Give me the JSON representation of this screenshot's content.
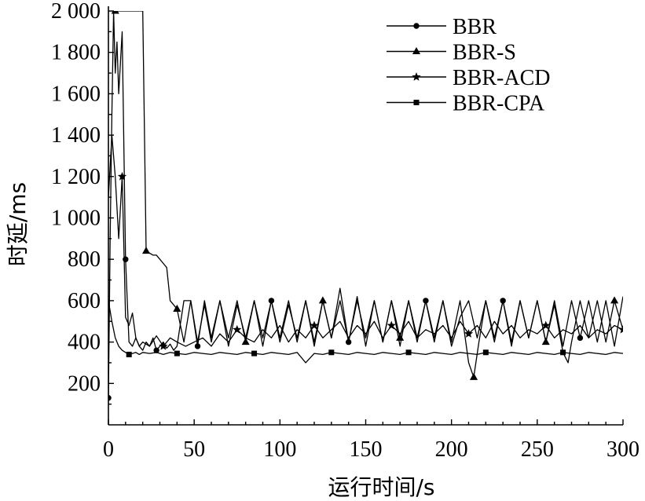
{
  "chart_data": {
    "type": "line",
    "xlabel": "运行时间/s",
    "ylabel": "时延/ms",
    "xlim": [
      0,
      300
    ],
    "ylim": [
      0,
      2000
    ],
    "x_ticks": [
      0,
      50,
      100,
      150,
      200,
      250,
      300
    ],
    "x_tick_labels": [
      "0",
      "50",
      "100",
      "150",
      "200",
      "250",
      "300"
    ],
    "y_ticks": [
      200,
      400,
      600,
      800,
      1000,
      1200,
      1400,
      1600,
      1800,
      2000
    ],
    "y_tick_labels": [
      "200",
      "400",
      "600",
      "800",
      "1 000",
      "1 200",
      "1 400",
      "1 600",
      "1 800",
      "2 000"
    ],
    "grid": false,
    "legend_position": "top-right",
    "series": [
      {
        "name": "BBR",
        "marker": "circle",
        "x": [
          0,
          1,
          2,
          3,
          4,
          5,
          6,
          7,
          8,
          10,
          12,
          14,
          16,
          18,
          20,
          22,
          24,
          26,
          28,
          30,
          32,
          34,
          36,
          38,
          40,
          44,
          48,
          52,
          56,
          60,
          65,
          70,
          75,
          80,
          85,
          90,
          95,
          100,
          105,
          110,
          115,
          120,
          125,
          130,
          135,
          140,
          145,
          150,
          155,
          160,
          165,
          170,
          175,
          180,
          185,
          190,
          195,
          200,
          205,
          210,
          215,
          220,
          225,
          230,
          235,
          240,
          245,
          250,
          255,
          260,
          265,
          270,
          275,
          280,
          285,
          290,
          295,
          300
        ],
        "y": [
          130,
          900,
          1500,
          2000,
          1700,
          1850,
          1600,
          1750,
          1900,
          800,
          400,
          380,
          420,
          380,
          360,
          400,
          380,
          420,
          360,
          380,
          400,
          370,
          390,
          360,
          380,
          600,
          600,
          380,
          600,
          420,
          600,
          380,
          580,
          420,
          600,
          380,
          600,
          420,
          600,
          400,
          600,
          380,
          600,
          420,
          600,
          400,
          620,
          380,
          600,
          400,
          600,
          380,
          600,
          420,
          600,
          400,
          600,
          380,
          520,
          600,
          420,
          600,
          400,
          600,
          380,
          600,
          420,
          600,
          400,
          600,
          380,
          600,
          420,
          600,
          400,
          600,
          380,
          620
        ]
      },
      {
        "name": "BBR-S",
        "marker": "triangle",
        "x": [
          0,
          2,
          4,
          6,
          8,
          10,
          12,
          14,
          16,
          18,
          20,
          22,
          24,
          26,
          28,
          30,
          32,
          34,
          36,
          38,
          40,
          44,
          48,
          52,
          56,
          60,
          65,
          70,
          75,
          80,
          85,
          90,
          95,
          100,
          105,
          110,
          115,
          120,
          125,
          130,
          135,
          140,
          145,
          150,
          155,
          160,
          165,
          170,
          175,
          180,
          185,
          190,
          195,
          200,
          205,
          210,
          213,
          216,
          220,
          225,
          230,
          235,
          240,
          245,
          250,
          255,
          260,
          265,
          268,
          270,
          275,
          280,
          285,
          290,
          295,
          300
        ],
        "y": [
          2000,
          2000,
          2000,
          2000,
          2000,
          2000,
          2000,
          2000,
          2000,
          2000,
          2000,
          840,
          830,
          820,
          820,
          800,
          780,
          760,
          600,
          580,
          560,
          400,
          600,
          400,
          580,
          400,
          600,
          420,
          600,
          400,
          600,
          420,
          600,
          400,
          580,
          420,
          600,
          400,
          600,
          420,
          660,
          400,
          600,
          420,
          600,
          400,
          600,
          420,
          600,
          400,
          600,
          420,
          600,
          400,
          600,
          300,
          230,
          400,
          600,
          420,
          600,
          400,
          600,
          420,
          600,
          400,
          580,
          350,
          300,
          400,
          600,
          420,
          600,
          400,
          600,
          460
        ]
      },
      {
        "name": "BBR-ACD",
        "marker": "star",
        "x": [
          0,
          2,
          4,
          6,
          8,
          10,
          12,
          14,
          16,
          18,
          20,
          24,
          28,
          32,
          36,
          40,
          45,
          50,
          55,
          60,
          65,
          70,
          75,
          80,
          85,
          90,
          95,
          100,
          105,
          110,
          115,
          120,
          125,
          130,
          135,
          140,
          145,
          150,
          155,
          160,
          165,
          170,
          175,
          180,
          185,
          190,
          195,
          200,
          205,
          210,
          215,
          220,
          225,
          230,
          235,
          240,
          245,
          250,
          255,
          260,
          265,
          270,
          275,
          280,
          285,
          290,
          295,
          300
        ],
        "y": [
          1100,
          1400,
          1200,
          900,
          1200,
          520,
          480,
          540,
          420,
          380,
          400,
          380,
          430,
          380,
          420,
          400,
          380,
          400,
          420,
          380,
          440,
          400,
          460,
          420,
          400,
          460,
          420,
          480,
          400,
          460,
          420,
          480,
          420,
          460,
          500,
          420,
          480,
          440,
          500,
          420,
          480,
          440,
          500,
          420,
          460,
          440,
          480,
          420,
          500,
          440,
          480,
          420,
          500,
          440,
          480,
          420,
          460,
          440,
          480,
          420,
          460,
          440,
          480,
          420,
          460,
          440,
          480,
          460
        ]
      },
      {
        "name": "BBR-CPA",
        "marker": "square",
        "x": [
          0,
          2,
          4,
          6,
          8,
          10,
          12,
          14,
          16,
          18,
          20,
          24,
          28,
          32,
          36,
          40,
          45,
          50,
          55,
          60,
          65,
          70,
          75,
          80,
          85,
          90,
          95,
          100,
          105,
          110,
          115,
          120,
          125,
          130,
          135,
          140,
          145,
          150,
          155,
          160,
          165,
          170,
          175,
          180,
          185,
          190,
          195,
          200,
          205,
          210,
          215,
          220,
          225,
          230,
          235,
          240,
          245,
          250,
          255,
          260,
          265,
          270,
          275,
          280,
          285,
          290,
          295,
          300
        ],
        "y": [
          600,
          500,
          420,
          380,
          360,
          350,
          340,
          345,
          350,
          340,
          350,
          345,
          350,
          340,
          350,
          345,
          340,
          350,
          345,
          340,
          350,
          345,
          340,
          350,
          345,
          340,
          350,
          345,
          340,
          350,
          300,
          345,
          340,
          350,
          345,
          340,
          350,
          345,
          340,
          350,
          345,
          340,
          350,
          345,
          340,
          350,
          345,
          340,
          350,
          345,
          340,
          350,
          345,
          340,
          350,
          345,
          340,
          350,
          345,
          340,
          350,
          345,
          340,
          350,
          345,
          340,
          350,
          345
        ]
      }
    ]
  }
}
